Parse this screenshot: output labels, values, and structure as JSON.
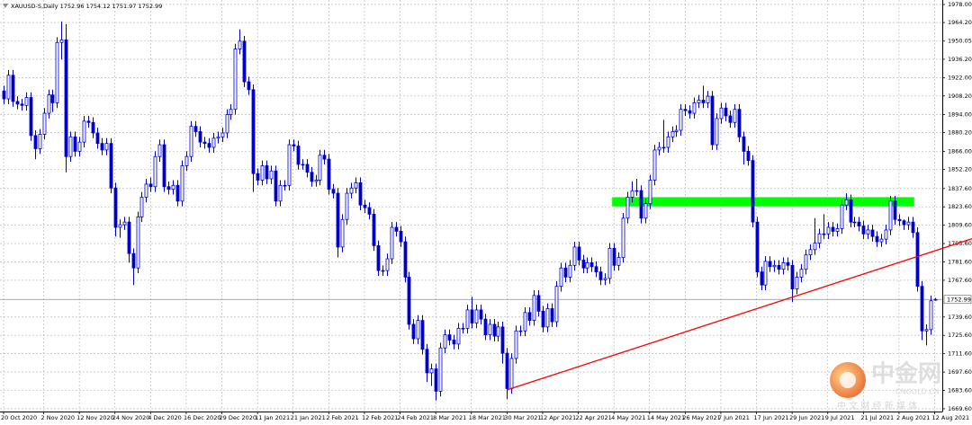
{
  "chart_data": {
    "type": "candlestick",
    "symbol": "XAUUSD-S,Daily",
    "categories": [
      "20 Oct 2020",
      null,
      null,
      null,
      null,
      null,
      null,
      null,
      null,
      "2 Nov 2020",
      null,
      null,
      null,
      null,
      null,
      null,
      null,
      "12 Nov 2020",
      null,
      null,
      null,
      null,
      null,
      null,
      null,
      "24 Nov 2020",
      null,
      null,
      null,
      null,
      null,
      null,
      null,
      "4 Dec 2020",
      null,
      null,
      null,
      null,
      null,
      null,
      null,
      "16 Dec 2020",
      null,
      null,
      null,
      null,
      null,
      null,
      null,
      "29 Dec 2020",
      null,
      null,
      null,
      null,
      null,
      null,
      null,
      "11 Jan 2021",
      null,
      null,
      null,
      null,
      null,
      null,
      null,
      "21 Jan 2021",
      null,
      null,
      null,
      null,
      null,
      null,
      null,
      "2 Feb 2021",
      null,
      null,
      null,
      null,
      null,
      null,
      null,
      "12 Feb 2021",
      null,
      null,
      null,
      null,
      null,
      null,
      null,
      "24 Feb 2021",
      null,
      null,
      null,
      null,
      null,
      null,
      null,
      "8 Mar 2021",
      null,
      null,
      null,
      null,
      null,
      null,
      null,
      "18 Mar 2021",
      null,
      null,
      null,
      null,
      null,
      null,
      null,
      "30 Mar 2021",
      null,
      null,
      null,
      null,
      null,
      null,
      null,
      "12 Apr 2021",
      null,
      null,
      null,
      null,
      null,
      null,
      null,
      "22 Apr 2021",
      null,
      null,
      null,
      null,
      null,
      null,
      null,
      "4 May 2021",
      null,
      null,
      null,
      null,
      null,
      null,
      null,
      "14 May 2021",
      null,
      null,
      null,
      null,
      null,
      null,
      null,
      "26 May 2021",
      null,
      null,
      null,
      null,
      null,
      null,
      null,
      "7 Jun 2021",
      null,
      null,
      null,
      null,
      null,
      null,
      null,
      "17 Jun 2021",
      null,
      null,
      null,
      null,
      null,
      null,
      null,
      "29 Jun 2021",
      null,
      null,
      null,
      null,
      null,
      null,
      null,
      "9 Jul 2021",
      null,
      null,
      null,
      null,
      null,
      null,
      null,
      "21 Jul 2021",
      null,
      null,
      null,
      null,
      null,
      null,
      null,
      "2 Aug 2021",
      null,
      null,
      null,
      null,
      null,
      null,
      null,
      "12 Aug 2021"
    ],
    "open": [
      1912,
      1906,
      1924,
      1904,
      1902,
      1901,
      1907,
      1878,
      1868,
      1879,
      1895,
      1909,
      1903,
      1949,
      1951,
      1862,
      1877,
      1866,
      1873,
      1889,
      1888,
      1880,
      1872,
      1867,
      1872,
      1838,
      1808,
      1810,
      1812,
      1788,
      1777,
      1816,
      1831,
      1841,
      1839,
      1862,
      1871,
      1839,
      1837,
      1840,
      1828,
      1855,
      1862,
      1885,
      1881,
      1873,
      1872,
      1869,
      1876,
      1877,
      1880,
      1894,
      1898,
      1944,
      1950,
      1919,
      1913,
      1849,
      1844,
      1855,
      1845,
      1851,
      1828,
      1840,
      1840,
      1871,
      1870,
      1856,
      1856,
      1850,
      1843,
      1844,
      1863,
      1860,
      1837,
      1834,
      1793,
      1814,
      1834,
      1838,
      1842,
      1825,
      1823,
      1818,
      1794,
      1775,
      1775,
      1784,
      1808,
      1805,
      1797,
      1770,
      1734,
      1723,
      1737,
      1715,
      1697,
      1700,
      1683,
      1716,
      1726,
      1722,
      1719,
      1731,
      1731,
      1745,
      1735,
      1745,
      1738,
      1726,
      1734,
      1725,
      1732,
      1712,
      1685,
      1708,
      1729,
      1729,
      1743,
      1737,
      1756,
      1744,
      1732,
      1746,
      1736,
      1763,
      1777,
      1770,
      1779,
      1793,
      1783,
      1777,
      1781,
      1778,
      1774,
      1768,
      1769,
      1792,
      1779,
      1785,
      1815,
      1831,
      1836,
      1836,
      1815,
      1826,
      1844,
      1867,
      1869,
      1869,
      1877,
      1881,
      1882,
      1898,
      1897,
      1895,
      1903,
      1905,
      1903,
      1908,
      1871,
      1891,
      1899,
      1893,
      1888,
      1898,
      1877,
      1866,
      1859,
      1812,
      1774,
      1764,
      1782,
      1778,
      1779,
      1776,
      1781,
      1779,
      1761,
      1770,
      1776,
      1787,
      1791,
      1796,
      1803,
      1803,
      1808,
      1805,
      1807,
      1825,
      1829,
      1812,
      1812,
      1809,
      1803,
      1806,
      1801,
      1797,
      1799,
      1806,
      1828,
      1814,
      1813,
      1810,
      1812,
      1804,
      1763,
      1729,
      1730,
      1752.96
    ],
    "high": [
      1916,
      1928,
      1928,
      1908,
      1906,
      1911,
      1911,
      1882,
      1883,
      1899,
      1913,
      1913,
      1953,
      1965,
      1963,
      1881,
      1881,
      1877,
      1893,
      1893,
      1892,
      1884,
      1876,
      1876,
      1876,
      1842,
      1814,
      1816,
      1816,
      1792,
      1820,
      1835,
      1845,
      1846,
      1866,
      1875,
      1875,
      1843,
      1844,
      1844,
      1859,
      1866,
      1889,
      1889,
      1885,
      1877,
      1876,
      1880,
      1881,
      1884,
      1898,
      1902,
      1948,
      1959,
      1954,
      1923,
      1917,
      1853,
      1859,
      1859,
      1855,
      1855,
      1844,
      1844,
      1875,
      1875,
      1874,
      1860,
      1860,
      1854,
      1848,
      1867,
      1867,
      1864,
      1841,
      1838,
      1818,
      1838,
      1842,
      1846,
      1846,
      1829,
      1827,
      1822,
      1798,
      1779,
      1788,
      1812,
      1812,
      1809,
      1801,
      1774,
      1738,
      1741,
      1741,
      1719,
      1704,
      1704,
      1720,
      1730,
      1730,
      1726,
      1735,
      1735,
      1749,
      1755,
      1749,
      1749,
      1742,
      1738,
      1738,
      1736,
      1736,
      1716,
      1712,
      1733,
      1733,
      1747,
      1747,
      1760,
      1760,
      1748,
      1750,
      1750,
      1767,
      1781,
      1781,
      1783,
      1797,
      1797,
      1787,
      1785,
      1785,
      1782,
      1778,
      1773,
      1796,
      1796,
      1789,
      1819,
      1835,
      1843,
      1845,
      1840,
      1830,
      1848,
      1871,
      1873,
      1890,
      1881,
      1885,
      1886,
      1902,
      1902,
      1901,
      1907,
      1909,
      1916,
      1912,
      1912,
      1895,
      1903,
      1903,
      1897,
      1902,
      1902,
      1881,
      1870,
      1863,
      1816,
      1778,
      1786,
      1786,
      1783,
      1783,
      1785,
      1785,
      1783,
      1774,
      1780,
      1791,
      1795,
      1815,
      1807,
      1818,
      1812,
      1812,
      1811,
      1829,
      1834,
      1833,
      1816,
      1816,
      1813,
      1810,
      1810,
      1805,
      1803,
      1810,
      1832,
      1832,
      1818,
      1814,
      1816,
      1816,
      1808,
      1767,
      1734,
      1756,
      1754.12
    ],
    "low": [
      1902,
      1902,
      1900,
      1898,
      1897,
      1897,
      1874,
      1860,
      1864,
      1875,
      1891,
      1896,
      1899,
      1936,
      1850,
      1858,
      1862,
      1862,
      1869,
      1884,
      1876,
      1868,
      1863,
      1863,
      1834,
      1801,
      1800,
      1806,
      1781,
      1764,
      1773,
      1812,
      1827,
      1835,
      1835,
      1858,
      1835,
      1833,
      1833,
      1824,
      1824,
      1851,
      1858,
      1877,
      1869,
      1868,
      1865,
      1865,
      1872,
      1873,
      1876,
      1890,
      1894,
      1940,
      1915,
      1909,
      1835,
      1840,
      1840,
      1841,
      1841,
      1824,
      1824,
      1836,
      1836,
      1866,
      1852,
      1852,
      1846,
      1839,
      1839,
      1840,
      1856,
      1833,
      1830,
      1785,
      1789,
      1810,
      1830,
      1834,
      1821,
      1819,
      1814,
      1790,
      1771,
      1771,
      1771,
      1780,
      1801,
      1793,
      1766,
      1730,
      1719,
      1719,
      1711,
      1690,
      1687,
      1676,
      1679,
      1712,
      1718,
      1715,
      1715,
      1727,
      1727,
      1731,
      1731,
      1734,
      1722,
      1722,
      1721,
      1721,
      1704,
      1677,
      1681,
      1704,
      1725,
      1725,
      1733,
      1733,
      1740,
      1728,
      1728,
      1732,
      1732,
      1759,
      1766,
      1766,
      1775,
      1779,
      1773,
      1773,
      1774,
      1770,
      1764,
      1764,
      1765,
      1775,
      1775,
      1781,
      1811,
      1827,
      1832,
      1811,
      1811,
      1822,
      1840,
      1863,
      1865,
      1865,
      1873,
      1877,
      1878,
      1893,
      1891,
      1891,
      1899,
      1899,
      1899,
      1867,
      1867,
      1887,
      1889,
      1884,
      1884,
      1873,
      1856,
      1855,
      1808,
      1770,
      1760,
      1760,
      1774,
      1774,
      1772,
      1772,
      1775,
      1751,
      1757,
      1766,
      1772,
      1783,
      1787,
      1792,
      1799,
      1799,
      1801,
      1801,
      1803,
      1821,
      1808,
      1808,
      1805,
      1799,
      1799,
      1797,
      1793,
      1793,
      1795,
      1802,
      1810,
      1809,
      1806,
      1806,
      1800,
      1759,
      1722,
      1718,
      1726,
      1751.97
    ],
    "close": [
      1906,
      1924,
      1904,
      1902,
      1901,
      1907,
      1878,
      1868,
      1879,
      1895,
      1909,
      1903,
      1949,
      1951,
      1862,
      1877,
      1866,
      1873,
      1889,
      1888,
      1880,
      1872,
      1867,
      1872,
      1838,
      1808,
      1810,
      1812,
      1788,
      1777,
      1816,
      1831,
      1841,
      1839,
      1862,
      1871,
      1839,
      1837,
      1840,
      1828,
      1855,
      1862,
      1885,
      1881,
      1873,
      1872,
      1869,
      1876,
      1877,
      1880,
      1894,
      1898,
      1944,
      1950,
      1919,
      1913,
      1849,
      1844,
      1855,
      1845,
      1851,
      1828,
      1840,
      1840,
      1871,
      1870,
      1856,
      1856,
      1850,
      1843,
      1844,
      1863,
      1860,
      1837,
      1834,
      1793,
      1814,
      1834,
      1838,
      1842,
      1825,
      1823,
      1818,
      1794,
      1775,
      1775,
      1784,
      1808,
      1805,
      1797,
      1770,
      1734,
      1723,
      1737,
      1715,
      1697,
      1700,
      1683,
      1716,
      1726,
      1722,
      1719,
      1731,
      1731,
      1745,
      1735,
      1745,
      1738,
      1726,
      1734,
      1725,
      1732,
      1712,
      1685,
      1708,
      1729,
      1729,
      1743,
      1737,
      1756,
      1744,
      1732,
      1746,
      1736,
      1763,
      1777,
      1770,
      1779,
      1793,
      1783,
      1777,
      1781,
      1778,
      1774,
      1768,
      1769,
      1792,
      1779,
      1785,
      1815,
      1831,
      1836,
      1836,
      1815,
      1826,
      1844,
      1867,
      1869,
      1869,
      1877,
      1881,
      1882,
      1898,
      1897,
      1895,
      1903,
      1905,
      1903,
      1908,
      1871,
      1891,
      1899,
      1893,
      1888,
      1898,
      1877,
      1866,
      1859,
      1812,
      1774,
      1764,
      1782,
      1778,
      1779,
      1776,
      1781,
      1779,
      1761,
      1770,
      1776,
      1787,
      1791,
      1796,
      1803,
      1803,
      1808,
      1805,
      1807,
      1825,
      1829,
      1812,
      1812,
      1809,
      1803,
      1806,
      1801,
      1797,
      1799,
      1806,
      1828,
      1814,
      1813,
      1810,
      1812,
      1804,
      1763,
      1729,
      1730,
      1752,
      1752.99
    ],
    "color": "#0000cd",
    "ylim": [
      1667.5,
      1981.4
    ],
    "yticks": [
      {
        "value": 1978,
        "label": "1978.00"
      },
      {
        "value": 1964.2,
        "label": "1964.20"
      },
      {
        "value": 1950.05,
        "label": "1950.05"
      },
      {
        "value": 1936.2,
        "label": "1936.20"
      },
      {
        "value": 1922,
        "label": "1922.00"
      },
      {
        "value": 1908.2,
        "label": "1908.20"
      },
      {
        "value": 1894,
        "label": "1894.00"
      },
      {
        "value": 1880.2,
        "label": "1880.20"
      },
      {
        "value": 1866,
        "label": "1866.00"
      },
      {
        "value": 1852.2,
        "label": "1852.20"
      },
      {
        "value": 1837.6,
        "label": "1837.60"
      },
      {
        "value": 1823.6,
        "label": "1823.60"
      },
      {
        "value": 1809.6,
        "label": "1809.60"
      },
      {
        "value": 1795.6,
        "label": "1795.60"
      },
      {
        "value": 1781.6,
        "label": "1781.60"
      },
      {
        "value": 1767.6,
        "label": "1767.60"
      },
      {
        "value": 1739.6,
        "label": "1739.60"
      },
      {
        "value": 1725.6,
        "label": "1725.60"
      },
      {
        "value": 1711.6,
        "label": "1711.60"
      },
      {
        "value": 1697.6,
        "label": "1697.60"
      },
      {
        "value": 1683.6,
        "label": "1683.60"
      },
      {
        "value": 1669.6,
        "label": "1669.60"
      }
    ],
    "grid": true,
    "price_line_color": "#7d8fb3",
    "zone": {
      "index_range": [
        137,
        204
      ],
      "price_range": [
        1824,
        1831
      ],
      "color": "#00ff00"
    },
    "trendline": {
      "points": [
        [
          113,
          1684
        ],
        [
          218,
          1800
        ]
      ],
      "color": "#ff0000"
    }
  },
  "watermark": {
    "name": "中金网",
    "slogan": "中 文 财 经 新 媒 体",
    "site": "CNGOLD.CN"
  }
}
